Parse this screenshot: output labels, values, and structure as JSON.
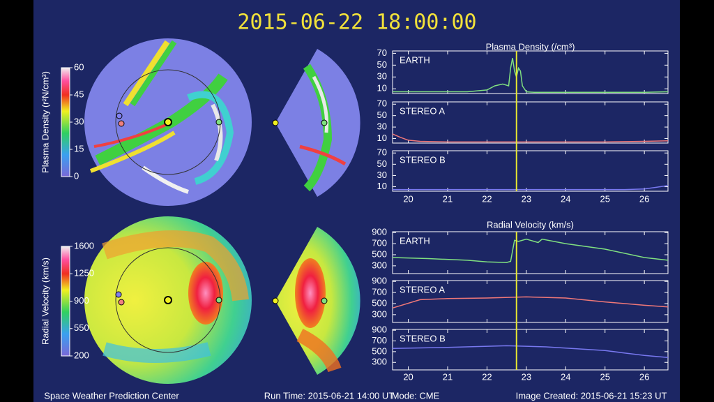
{
  "header": {
    "timestamp": "2015-06-22 18:00:00"
  },
  "colorbars": [
    {
      "label": "Plasma Density (r²N/cm³)",
      "ticks": [
        0,
        15,
        30,
        45,
        60
      ],
      "lim": [
        0,
        60
      ]
    },
    {
      "label": "Radial Velocity (km/s)",
      "ticks": [
        200,
        550,
        900,
        1250,
        1600
      ],
      "lim": [
        200,
        1600
      ]
    }
  ],
  "chart_data": [
    {
      "type": "line",
      "title": "Plasma Density (/cm³)",
      "xlim": [
        19.6,
        26.6
      ],
      "xticks": [
        20,
        21,
        22,
        23,
        24,
        25,
        26
      ],
      "ylim": [
        2,
        74
      ],
      "yticks": [
        10,
        30,
        50,
        70
      ],
      "marker_x": 22.75,
      "marker_color": "#e8e830",
      "series": [
        {
          "name": "EARTH",
          "color": "#80e080",
          "x": [
            19.6,
            20.5,
            21.5,
            22.0,
            22.2,
            22.4,
            22.55,
            22.6,
            22.65,
            22.7,
            22.75,
            22.8,
            22.85,
            22.9,
            23.0,
            23.2,
            24.0,
            25.0,
            26.0,
            26.6
          ],
          "values": [
            5,
            5,
            5,
            8,
            15,
            18,
            15,
            45,
            62,
            40,
            30,
            45,
            40,
            15,
            5,
            4,
            4,
            4,
            4,
            5
          ]
        },
        {
          "name": "STEREO A",
          "color": "#f07878",
          "x": [
            19.6,
            19.8,
            20.0,
            20.3,
            21.0,
            22.0,
            23.0,
            24.0,
            25.0,
            26.0,
            26.6
          ],
          "values": [
            18,
            12,
            7,
            5,
            4,
            4,
            4,
            4,
            4,
            5,
            6
          ]
        },
        {
          "name": "STEREO B",
          "color": "#7878f0",
          "x": [
            19.6,
            20.5,
            21.5,
            22.5,
            23.5,
            24.5,
            25.5,
            26.0,
            26.3,
            26.6
          ],
          "values": [
            5,
            5,
            5,
            5,
            5,
            5,
            5,
            6,
            9,
            12
          ]
        }
      ]
    },
    {
      "type": "line",
      "title": "Radial Velocity (km/s)",
      "xlim": [
        19.6,
        26.6
      ],
      "xticks": [
        20,
        21,
        22,
        23,
        24,
        25,
        26
      ],
      "ylim": [
        160,
        915
      ],
      "yticks": [
        300,
        500,
        700,
        900
      ],
      "marker_x": 22.75,
      "marker_color": "#e8e830",
      "series": [
        {
          "name": "EARTH",
          "color": "#80e080",
          "x": [
            19.6,
            20.5,
            21.5,
            22.0,
            22.5,
            22.6,
            22.7,
            22.8,
            23.0,
            23.3,
            23.4,
            24.0,
            25.0,
            26.0,
            26.6
          ],
          "values": [
            450,
            430,
            400,
            370,
            360,
            380,
            760,
            740,
            780,
            720,
            780,
            700,
            600,
            450,
            400
          ]
        },
        {
          "name": "STEREO A",
          "color": "#f07878",
          "x": [
            19.6,
            20.3,
            21.0,
            22.0,
            23.0,
            24.0,
            25.0,
            26.0,
            26.6
          ],
          "values": [
            420,
            570,
            590,
            600,
            620,
            600,
            530,
            470,
            440
          ]
        },
        {
          "name": "STEREO B",
          "color": "#7878f0",
          "x": [
            19.6,
            21.0,
            22.5,
            23.5,
            25.0,
            26.0,
            26.6
          ],
          "values": [
            560,
            580,
            610,
            590,
            520,
            430,
            390
          ]
        }
      ]
    }
  ],
  "footer": {
    "center": "Space Weather Prediction Center",
    "run_time": "Run Time: 2015-06-21 14:00 UT",
    "mode": "Mode: CME",
    "created": "Image Created: 2015-06-21 15:23 UT"
  }
}
